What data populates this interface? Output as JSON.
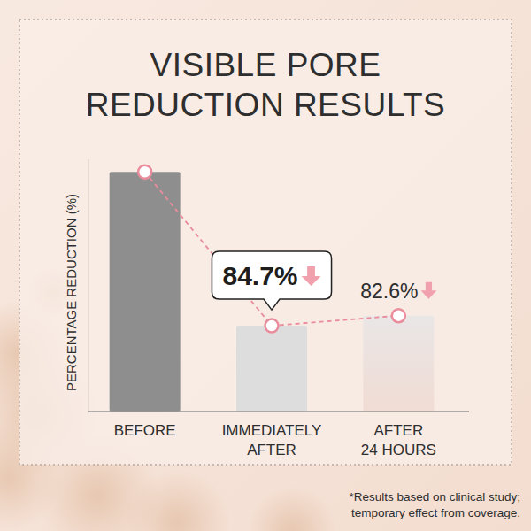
{
  "chart_data": {
    "type": "bar",
    "title": "VISIBLE PORE\nREDUCTION RESULTS",
    "y_label": "PERCENTAGE REDUCTION (%)",
    "categories": [
      "BEFORE",
      "IMMEDIATELY\nAFTER",
      "AFTER\n24 HOURS"
    ],
    "values": [
      95,
      34,
      38
    ],
    "colors": [
      "#8e8e8e",
      "#dedddd",
      "#f1dcd4"
    ],
    "ylim": [
      0,
      100
    ],
    "tick_labels": false,
    "grid": false,
    "marker": "circle",
    "line_style": "dashed",
    "annotations": [
      {
        "text": "84.7%",
        "category": "IMMEDIATELY\nAFTER"
      },
      {
        "text": "82.6%",
        "category": "AFTER\n24 HOURS"
      }
    ],
    "footnote": "*Results based on clinical study;\ntemporary effect from coverage."
  }
}
